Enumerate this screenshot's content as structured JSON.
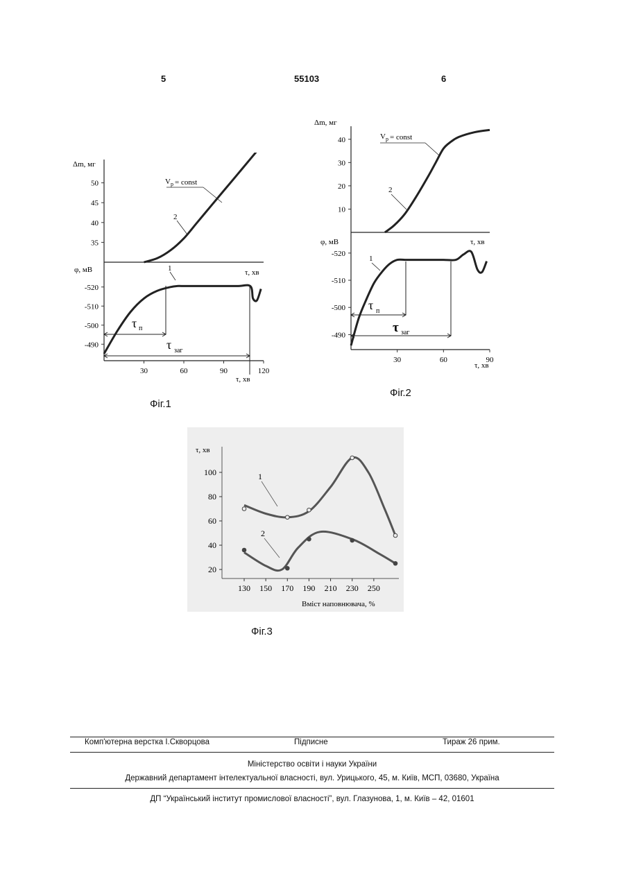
{
  "header": {
    "left_page": "5",
    "doc_number": "55103",
    "right_page": "6"
  },
  "figures": [
    {
      "caption": "Фіг.1"
    },
    {
      "caption": "Фіг.2"
    },
    {
      "caption": "Фіг.3"
    }
  ],
  "chart_data": [
    {
      "type": "line",
      "panel": "Фіг.1 upper",
      "xlabel": "τ, хв",
      "ylabel": "Δm, мг",
      "yticks": [
        "35",
        "40",
        "45",
        "50"
      ],
      "ylim": [
        30,
        55
      ],
      "xlim": [
        0,
        120
      ],
      "annotations": [
        "V",
        "p",
        "= const",
        "2"
      ],
      "series": [
        {
          "x": [
            30,
            40,
            50,
            60,
            70,
            80,
            90,
            100,
            110,
            115
          ],
          "y": [
            30,
            31,
            33,
            36,
            40,
            44,
            48,
            52,
            56,
            58
          ]
        }
      ]
    },
    {
      "type": "line",
      "panel": "Фіг.1 lower",
      "xlabel": "τ, хв",
      "ylabel": "φ, мВ",
      "yticks": [
        "-490",
        "-500",
        "-510",
        "-520"
      ],
      "xticks": [
        "30",
        "60",
        "90",
        "120"
      ],
      "xlim": [
        0,
        120
      ],
      "annotations": [
        "1",
        "τ",
        "п",
        "τ",
        "заг"
      ],
      "series": [
        {
          "x": [
            0,
            10,
            20,
            30,
            40,
            50,
            55,
            60,
            80,
            100,
            110,
            112,
            115,
            118
          ],
          "y": [
            -485,
            -497,
            -507,
            -514,
            -518,
            -520,
            -520.5,
            -520.5,
            -520.5,
            -520.5,
            -520.5,
            -514,
            -513,
            -519
          ]
        }
      ]
    },
    {
      "type": "line",
      "panel": "Фіг.2 upper",
      "xlabel": "τ, хв",
      "ylabel": "Δm, мг",
      "yticks": [
        "10",
        "20",
        "30",
        "40"
      ],
      "ylim": [
        0,
        45
      ],
      "xlim": [
        0,
        90
      ],
      "annotations": [
        "V",
        "p",
        "= const",
        "2"
      ],
      "series": [
        {
          "x": [
            22,
            28,
            35,
            42,
            50,
            55,
            60,
            65,
            70,
            80,
            90
          ],
          "y": [
            0,
            3,
            8,
            15,
            24,
            30,
            36,
            39,
            41,
            43,
            44
          ]
        }
      ]
    },
    {
      "type": "line",
      "panel": "Фіг.2 lower",
      "xlabel": "τ, хв",
      "ylabel": "φ, мВ",
      "yticks": [
        "-490",
        "-500",
        "-510",
        "-520"
      ],
      "xticks": [
        "30",
        "60",
        "90"
      ],
      "xlim": [
        0,
        90
      ],
      "annotations": [
        "1",
        "τ",
        "п",
        "τ",
        "заг"
      ],
      "series": [
        {
          "x": [
            0,
            5,
            10,
            15,
            20,
            25,
            30,
            35,
            40,
            50,
            60,
            68,
            73,
            78,
            82,
            85,
            88
          ],
          "y": [
            -486,
            -496,
            -503,
            -509,
            -513,
            -516,
            -517.5,
            -517.5,
            -517.5,
            -517.5,
            -517.5,
            -517.5,
            -519.5,
            -520.5,
            -514,
            -513,
            -517
          ]
        }
      ]
    },
    {
      "type": "line",
      "panel": "Фіг.3",
      "xlabel": "Вміст наповнювача, %",
      "ylabel": "τ, хв",
      "yticks": [
        "20",
        "40",
        "60",
        "80",
        "100"
      ],
      "xticks": [
        "130",
        "150",
        "170",
        "190",
        "210",
        "230",
        "250"
      ],
      "xlim": [
        120,
        270
      ],
      "ylim": [
        0,
        120
      ],
      "annotations": [
        "1",
        "2"
      ],
      "series": [
        {
          "name": "1",
          "points": [
            [
              130,
              70
            ],
            [
              170,
              63
            ],
            [
              190,
              69
            ],
            [
              230,
              112
            ],
            [
              270,
              48
            ]
          ],
          "curve": [
            [
              130,
              73
            ],
            [
              150,
              66
            ],
            [
              170,
              63
            ],
            [
              190,
              68
            ],
            [
              210,
              88
            ],
            [
              230,
              112
            ],
            [
              245,
              100
            ],
            [
              260,
              70
            ],
            [
              270,
              48
            ]
          ]
        },
        {
          "name": "2",
          "points": [
            [
              130,
              36
            ],
            [
              170,
              21
            ],
            [
              190,
              45
            ],
            [
              230,
              44
            ],
            [
              270,
              25
            ]
          ],
          "curve": [
            [
              130,
              34
            ],
            [
              150,
              23
            ],
            [
              165,
              20
            ],
            [
              180,
              38
            ],
            [
              200,
              51
            ],
            [
              230,
              45
            ],
            [
              255,
              33
            ],
            [
              270,
              25
            ]
          ]
        }
      ]
    }
  ],
  "footer": {
    "layout": "Комп'ютерна верстка І.Скворцова",
    "signed": "Підписне",
    "circulation": "Тираж 26 прим.",
    "ministry": "Міністерство освіти і науки України",
    "department": "Державний департамент інтелектуальної власності, вул. Урицького, 45, м. Київ, МСП, 03680, Україна",
    "institute": "ДП “Український інститут промислової власності”, вул. Глазунова, 1, м. Київ – 42, 01601"
  }
}
